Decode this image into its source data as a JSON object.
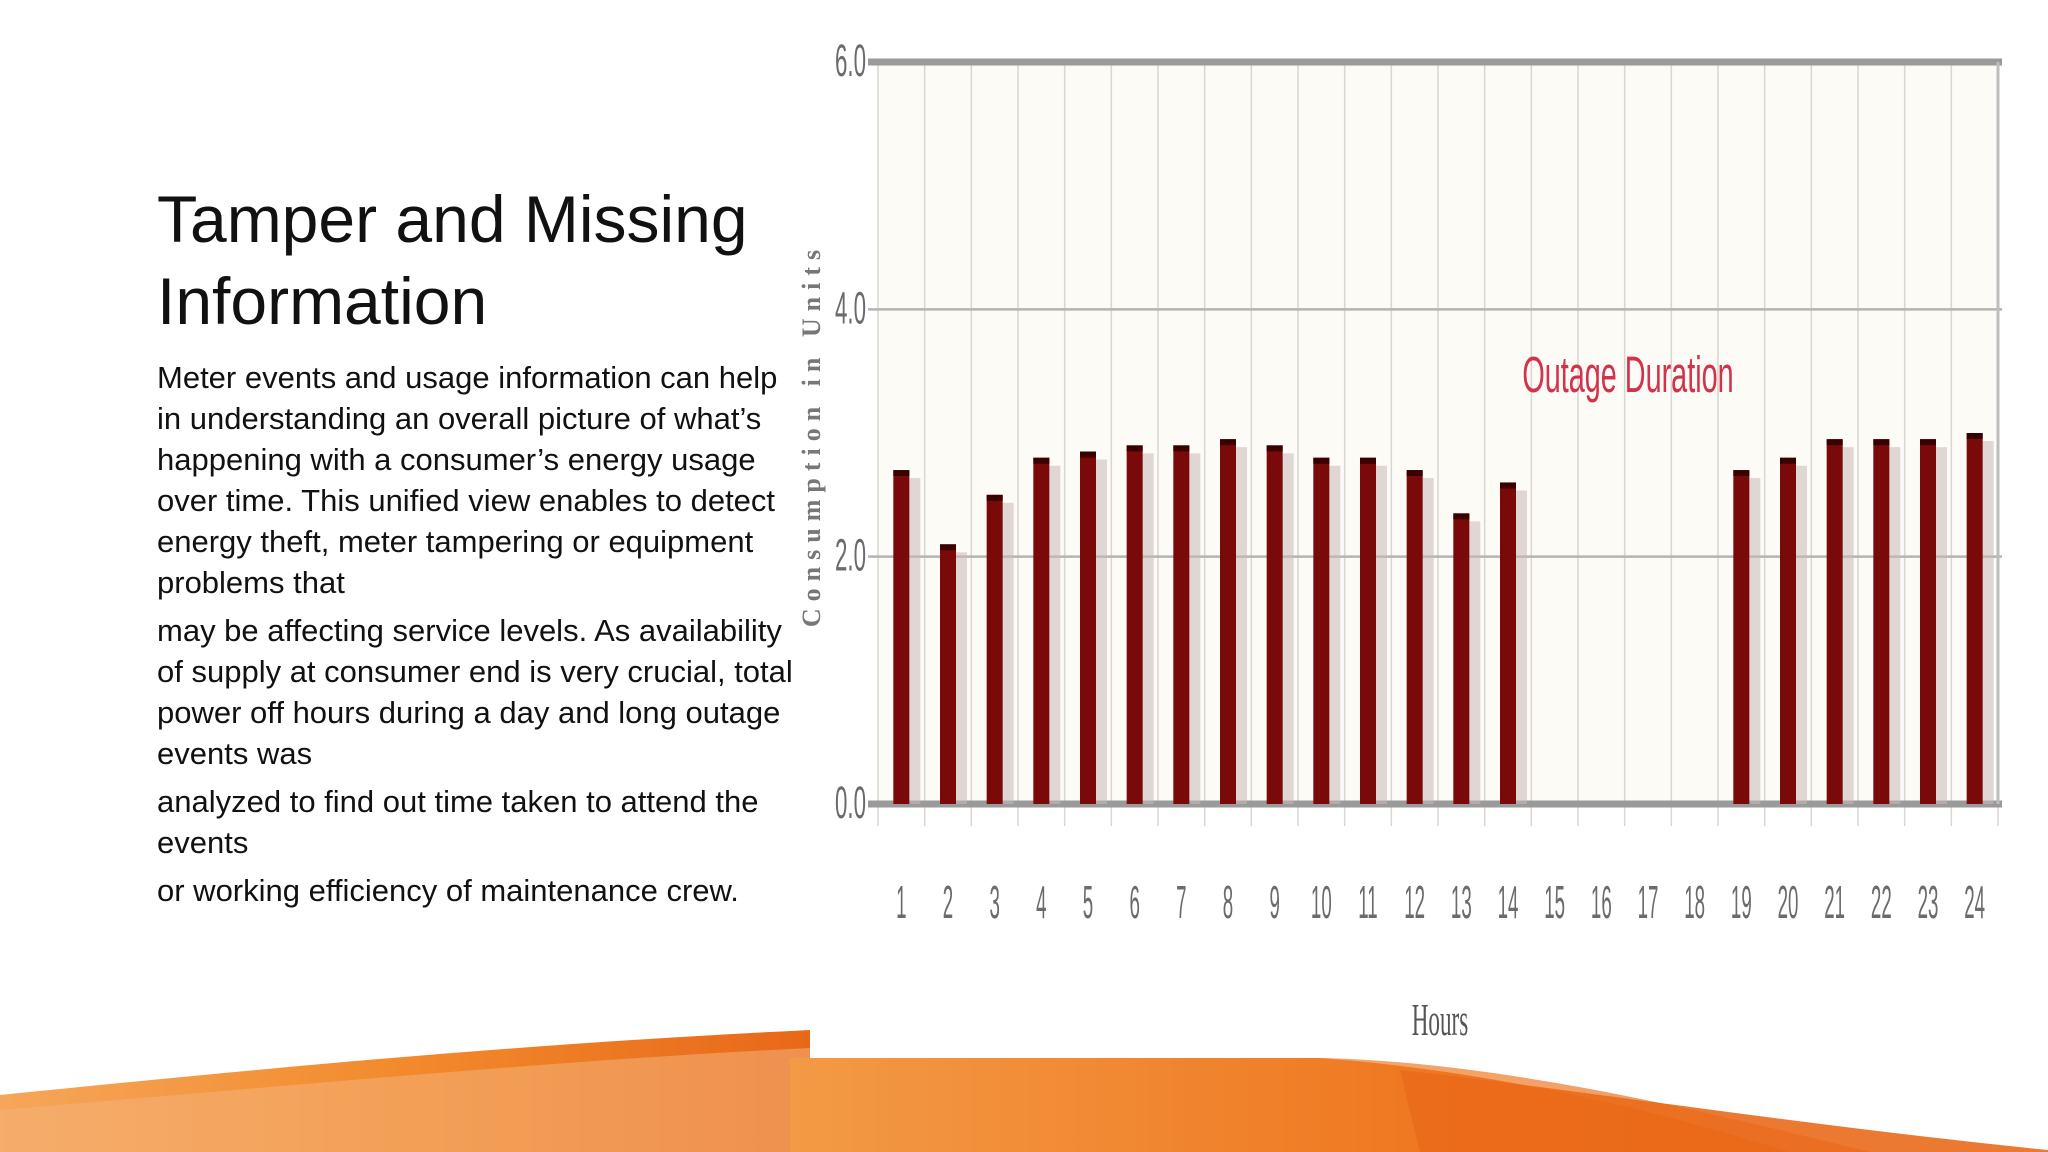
{
  "slide": {
    "title": "Tamper and Missing Information",
    "paragraphs": [
      "Meter events and usage information can help in understanding an overall picture of what’s happening with a consumer’s energy usage over time. This unified view enables to detect energy theft, meter tampering or equipment problems that",
      "may be affecting service levels. As availability of supply at consumer end is very crucial, total power off hours during a day and long outage events was",
      "analyzed to find out time taken to attend the events",
      "or working efficiency of maintenance crew."
    ]
  },
  "chart_data": {
    "type": "bar",
    "title": "",
    "xlabel": "Hours",
    "ylabel": "Consumption in Units",
    "ylim": [
      0,
      6
    ],
    "y_ticks": [
      "0.0",
      "2.0",
      "4.0",
      "6.0"
    ],
    "categories": [
      "1",
      "2",
      "3",
      "4",
      "5",
      "6",
      "7",
      "8",
      "9",
      "10",
      "11",
      "12",
      "13",
      "14",
      "15",
      "16",
      "17",
      "18",
      "19",
      "20",
      "21",
      "22",
      "23",
      "24"
    ],
    "values": [
      2.7,
      2.1,
      2.5,
      2.8,
      2.85,
      2.9,
      2.9,
      2.95,
      2.9,
      2.8,
      2.8,
      2.7,
      2.35,
      2.6,
      0,
      0,
      0,
      0,
      2.7,
      2.8,
      2.95,
      2.95,
      2.95,
      3.0
    ],
    "annotation": "Outage Duration",
    "grid": true,
    "legend": "none",
    "colors": {
      "bar": "#7a0a0a",
      "annotation": "#d2334a",
      "plot_bg": "#fdfbf6",
      "accent": "#f07b1e"
    }
  }
}
